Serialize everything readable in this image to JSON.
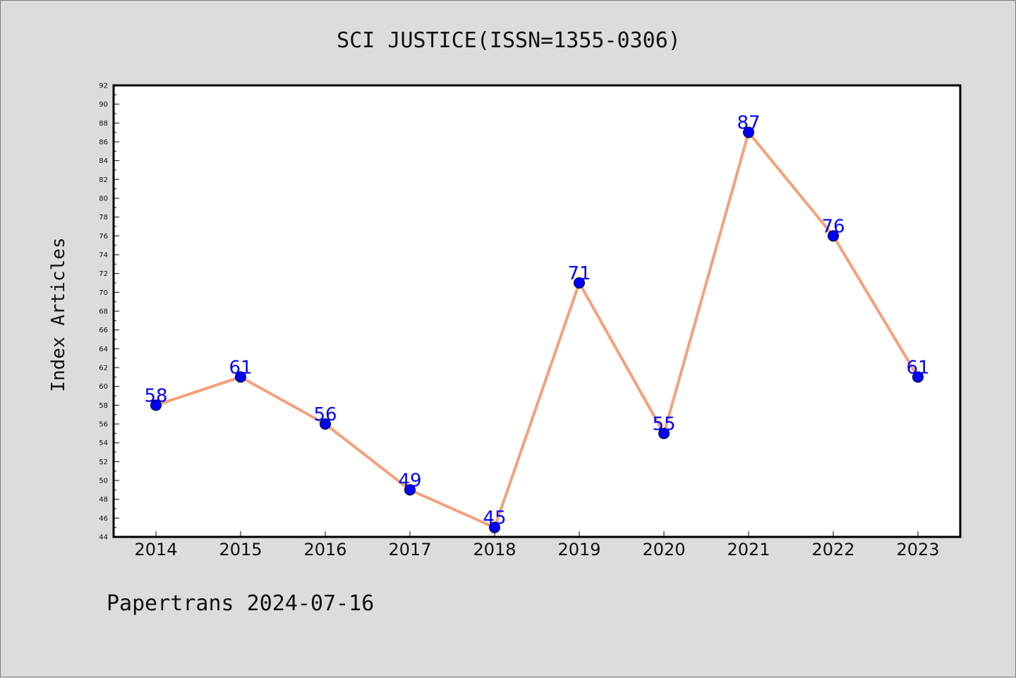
{
  "chart_data": {
    "type": "line",
    "title": "SCI JUSTICE(ISSN=1355-0306)",
    "ylabel": "Index Articles",
    "xlabel": "",
    "footer": "Papertrans 2024-07-16",
    "x": [
      "2014",
      "2015",
      "2016",
      "2017",
      "2018",
      "2019",
      "2020",
      "2021",
      "2022",
      "2023"
    ],
    "values": [
      58,
      61,
      56,
      49,
      45,
      71,
      55,
      87,
      76,
      61
    ],
    "ylim": [
      44,
      92
    ],
    "ytick_step": 2,
    "grid": false,
    "legend": "none",
    "colors": {
      "line": "#f4a07a",
      "marker": "#0000ff",
      "label": "#0000ff",
      "plot_background": "#ffffff",
      "figure_background": "#dcdcdc"
    }
  }
}
